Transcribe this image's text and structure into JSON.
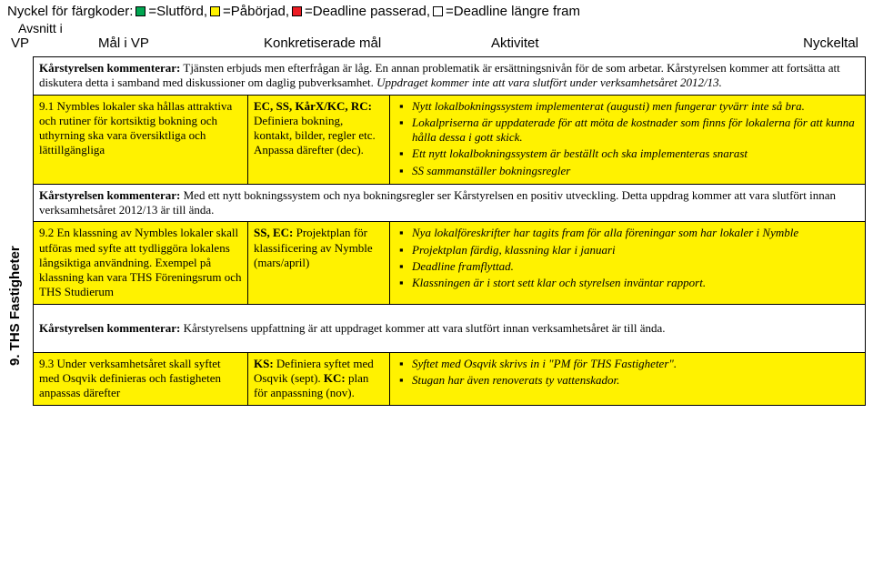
{
  "legend": {
    "prefix": "Nyckel för färgkoder:",
    "items": [
      {
        "color": "#00a651",
        "label": "=Slutförd,"
      },
      {
        "color": "#fff200",
        "label": "=Påbörjad,"
      },
      {
        "color": "#ed1c24",
        "label": "=Deadline passerad,"
      },
      {
        "color": "#ffffff",
        "label": "=Deadline längre fram"
      }
    ]
  },
  "sub_left_line1": "Avsnitt i",
  "sub_left_line2": "VP",
  "col_headers": {
    "c2": "Mål i VP",
    "c3": "Konkretiserade mål",
    "c4": "Aktivitet",
    "c5": "Nyckeltal"
  },
  "side_section": "9.  THS Fastigheter",
  "comment1": {
    "bold": "Kårstyrelsen kommenterar:",
    "text": " Tjänsten erbjuds men efterfrågan är låg. En annan problematik är ersättningsnivån för de som arbetar. Kårstyrelsen kommer att fortsätta att diskutera detta i samband med diskussioner om daglig pubverksamhet. ",
    "italic": "Uppdraget kommer inte att vara slutfört under verksamhetsåret 2012/13."
  },
  "row91": {
    "bg": "#fff200",
    "goal": "9.1 Nymbles lokaler ska hållas attraktiva och rutiner för kortsiktig bokning och uthyrning ska vara översiktliga och lättillgängliga",
    "activity_bold": "EC, SS, KårX/KC, RC:",
    "activity_rest": " Definiera bokning, kontakt, bilder, regler etc. Anpassa därefter (dec).",
    "bullets": [
      "Nytt lokalbokningssystem implementerat (augusti) men fungerar tyvärr inte så bra.",
      "Lokalpriserna är uppdaterade för att möta de kostnader som finns för lokalerna för att kunna hålla dessa i gott skick.",
      "Ett nytt lokalbokningssystem är beställt och ska implementeras snarast",
      "SS sammanställer bokningsregler"
    ]
  },
  "comment2": {
    "bold": "Kårstyrelsen kommenterar:",
    "text": " Med ett nytt bokningssystem och nya bokningsregler ser Kårstyrelsen en positiv utveckling. Detta uppdrag kommer att vara slutfört innan verksamhetsåret 2012/13 är till ända."
  },
  "row92": {
    "bg": "#fff200",
    "goal": "9.2 En klassning av Nymbles lokaler skall utföras med syfte att tydliggöra lokalens långsiktiga användning. Exempel på klassning kan vara THS Föreningsrum och THS Studierum",
    "activity_bold": "SS, EC:",
    "activity_rest": " Projektplan för klassificering av Nymble (mars/april)",
    "bullets": [
      "Nya lokalföreskrifter har tagits fram för alla föreningar som har lokaler i Nymble",
      "Projektplan färdig, klassning klar i januari",
      "Deadline framflyttad.",
      "Klassningen är i stort sett klar och styrelsen inväntar rapport."
    ]
  },
  "comment3": {
    "bold": "Kårstyrelsen kommenterar:",
    "text": " Kårstyrelsens uppfattning är att uppdraget kommer att vara slutfört innan verksamhetsåret är till ända."
  },
  "row93": {
    "bg": "#fff200",
    "goal": "9.3 Under verksamhetsåret skall syftet med Osqvik definieras och fastigheten anpassas därefter",
    "activity_bold1": "KS:",
    "activity_rest1": " Definiera syftet med Osqvik (sept). ",
    "activity_bold2": "KC:",
    "activity_rest2": " plan för anpassning (nov).",
    "bullets": [
      "Syftet med Osqvik skrivs in i \"PM för THS Fastigheter\".",
      "Stugan har även renoverats ty vattenskador."
    ]
  }
}
